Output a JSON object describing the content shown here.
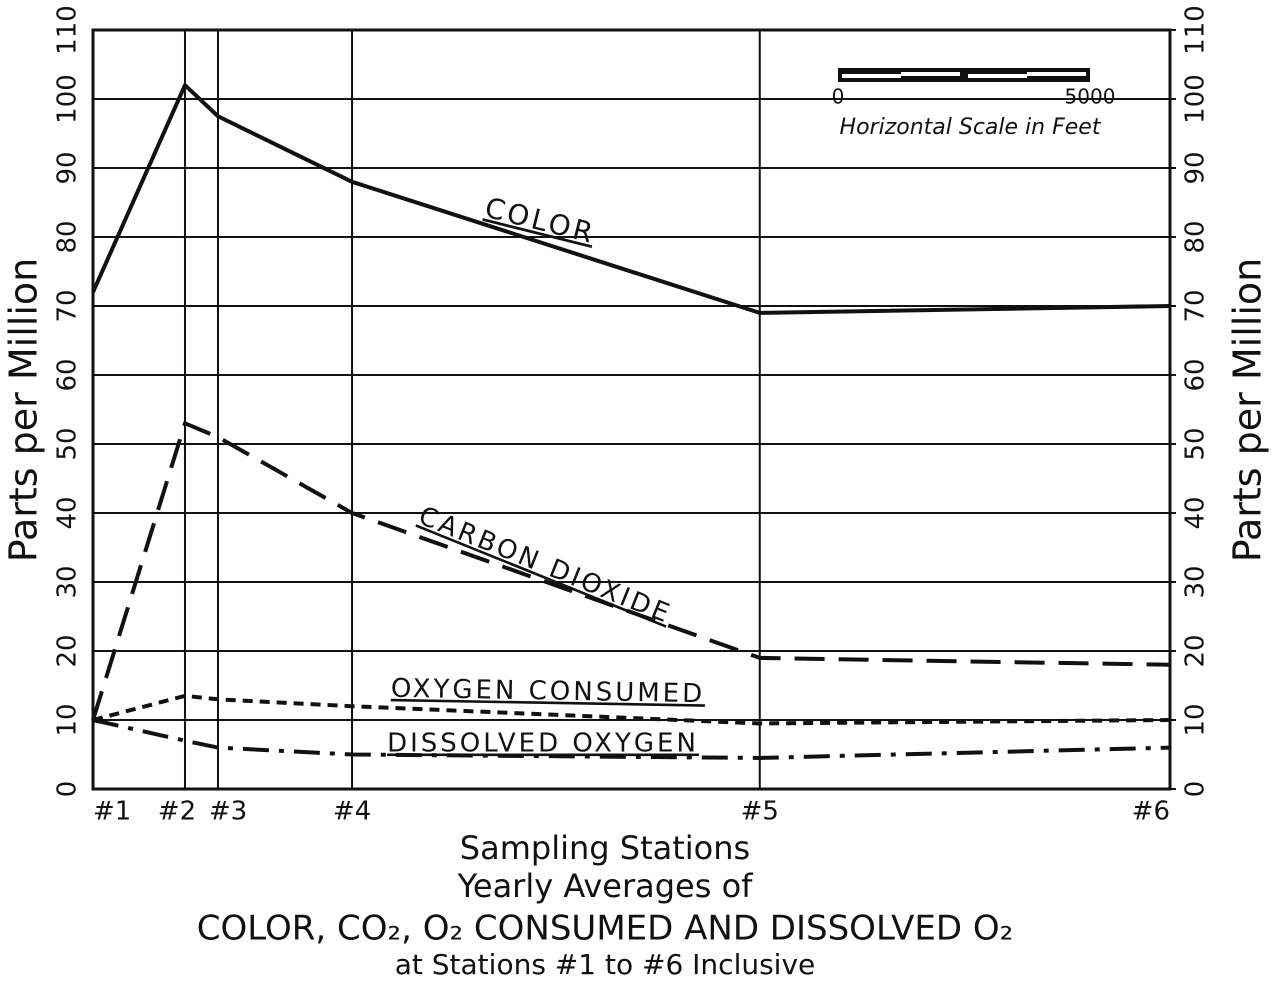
{
  "chart_data": {
    "type": "line",
    "title": "Yearly Averages of",
    "subtitle": [
      "COLOR, CO₂, O₂ CONSUMED AND DISSOLVED O₂",
      "at Stations #1 to #6 Inclusive"
    ],
    "xlabel": "Sampling Stations",
    "ylabel": "Parts per Million",
    "y2label": "Parts per Million",
    "x": [
      0,
      1825,
      2480,
      5140,
      13230,
      21370
    ],
    "xlim": [
      0,
      21370
    ],
    "xticks": [
      {
        "value": 0,
        "label": "#1"
      },
      {
        "value": 1825,
        "label": "#2"
      },
      {
        "value": 2480,
        "label": "#3"
      },
      {
        "value": 5140,
        "label": "#4"
      },
      {
        "value": 13230,
        "label": "#5"
      },
      {
        "value": 21370,
        "label": "#6"
      }
    ],
    "ylim": [
      0,
      110
    ],
    "yticks": [
      0,
      10,
      20,
      30,
      40,
      50,
      60,
      70,
      80,
      90,
      100,
      110
    ],
    "y2lim": [
      0,
      110
    ],
    "y2ticks": [
      0,
      10,
      20,
      30,
      40,
      50,
      60,
      70,
      80,
      90,
      100,
      110
    ],
    "grid": true,
    "series": [
      {
        "name": "COLOR",
        "color": "#111111",
        "style": "solid",
        "values": [
          72,
          102,
          97.5,
          88,
          69,
          70
        ]
      },
      {
        "name": "CARBON DIOXIDE",
        "color": "#111111",
        "style": "dashed",
        "values": [
          10,
          53,
          51,
          40,
          19,
          18
        ]
      },
      {
        "name": "OXYGEN CONSUMED",
        "color": "#111111",
        "style": "dotted",
        "values": [
          10,
          13.5,
          13,
          12,
          9.5,
          10
        ]
      },
      {
        "name": "DISSOLVED OXYGEN",
        "color": "#111111",
        "style": "dashdot",
        "values": [
          10,
          7,
          6,
          5,
          4.5,
          6
        ]
      }
    ],
    "scale_bar": {
      "values": [
        0,
        5000
      ],
      "label": "Horizontal Scale in Feet"
    }
  }
}
